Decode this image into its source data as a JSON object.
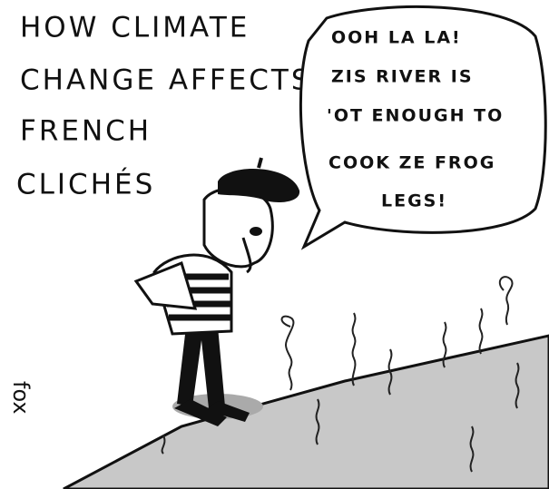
{
  "caption": {
    "lines": [
      "HOW CLIMATE",
      "CHANGE AFFECTS",
      "FRENCH",
      "CLICHÉS"
    ]
  },
  "speech_bubble": {
    "lines": [
      "OOH LA LA!",
      "ZIS RIVER IS",
      "'OT ENOUGH TO",
      "COOK ZE FROG",
      "LEGS!"
    ]
  },
  "signature": "fox"
}
